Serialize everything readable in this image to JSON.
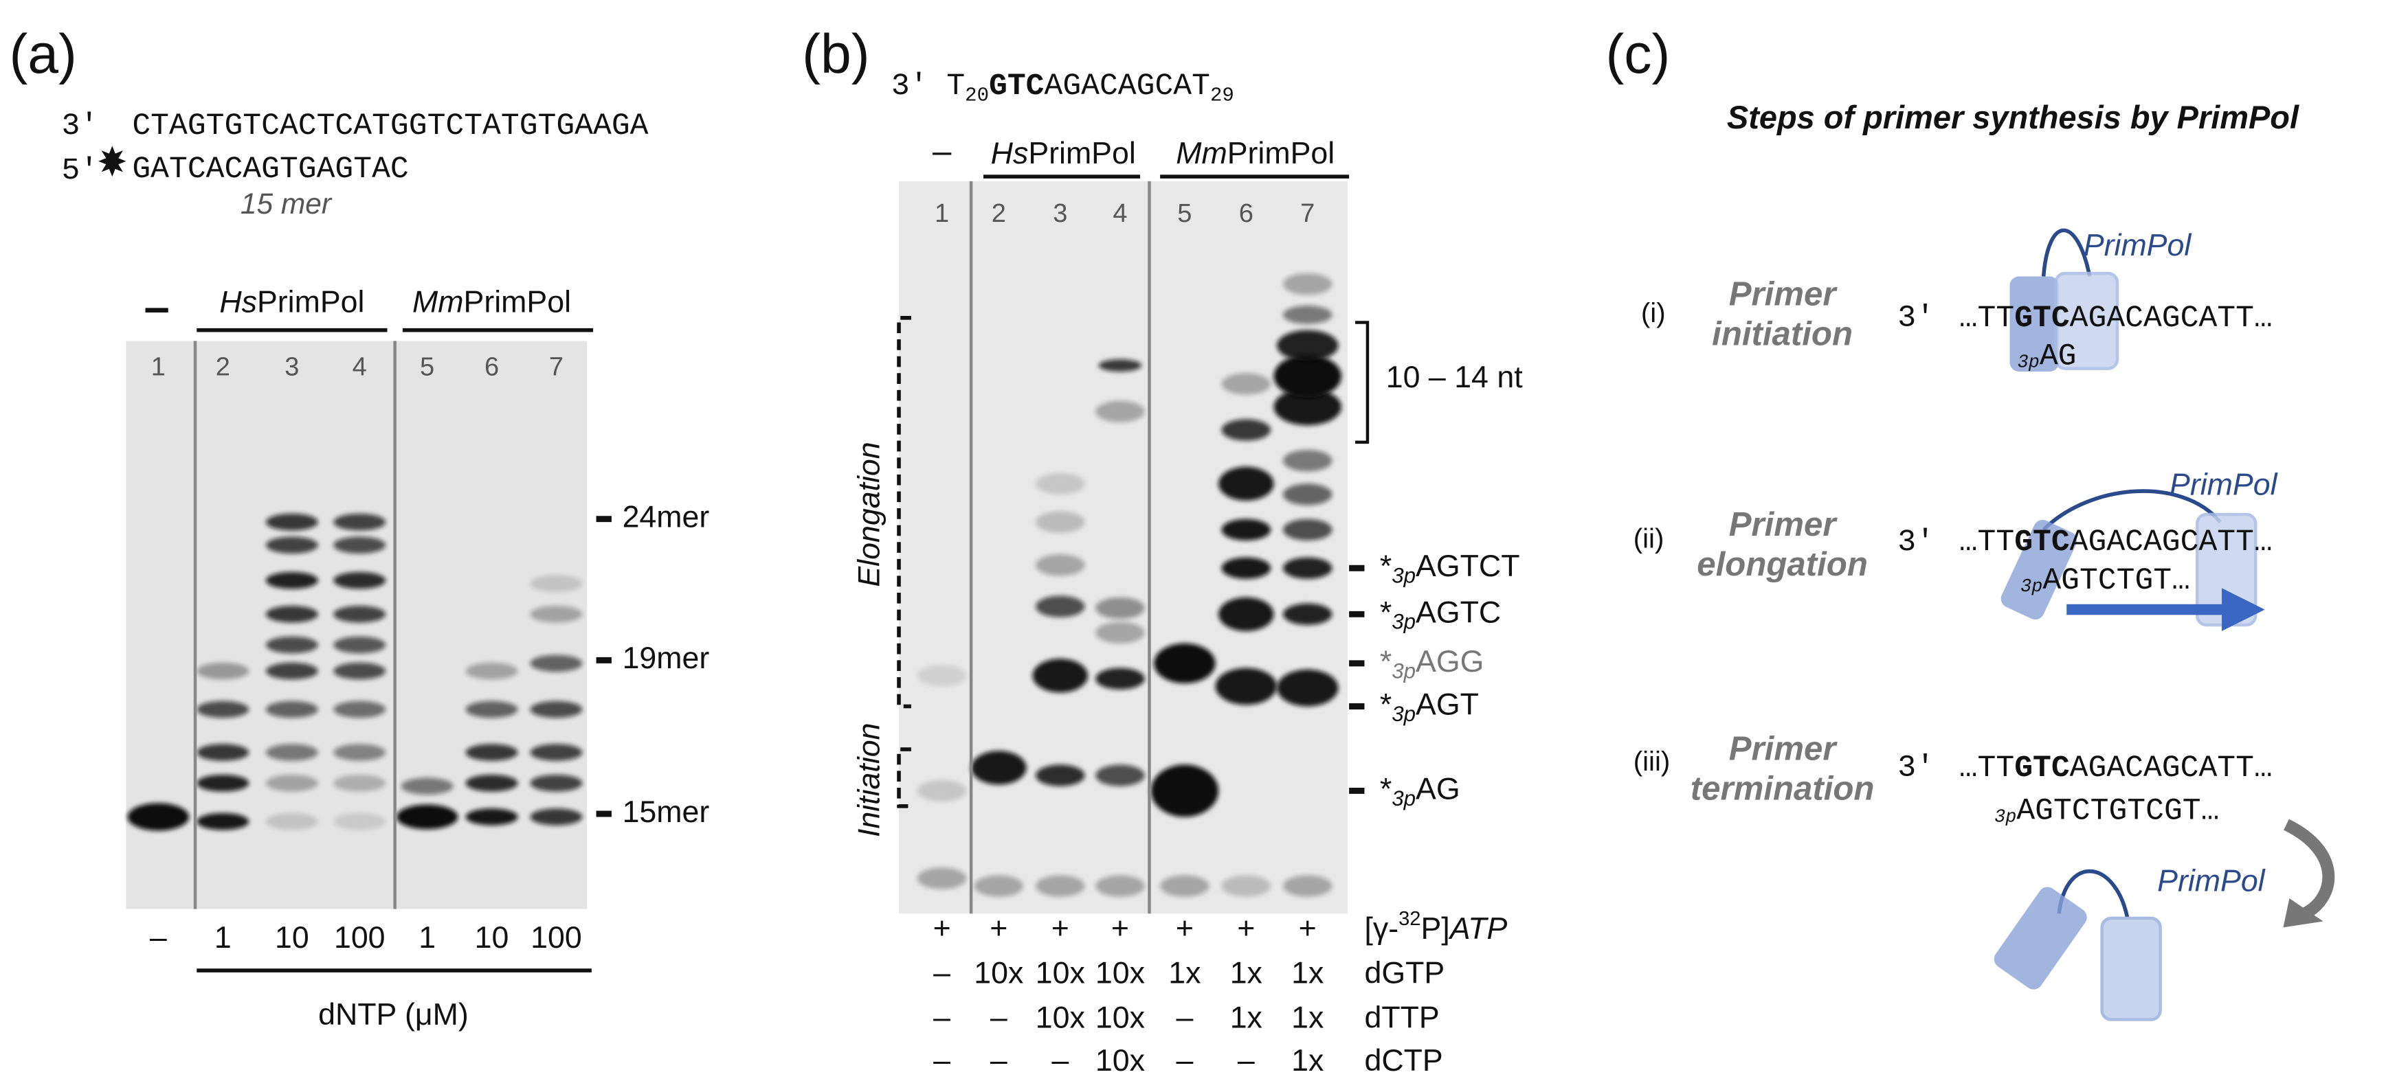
{
  "panel_a": {
    "label": "(a)",
    "template": {
      "end": "3′",
      "sequence": "CTAGTGTCACTCATGGTCTATGTGAAGA"
    },
    "primer": {
      "end": "5′",
      "sequence": "GATCACAGTGAGTAC",
      "length": "15 mer"
    },
    "gel": {
      "control": "–",
      "hs": {
        "species": "Hs",
        "enzyme": "PrimPol"
      },
      "mm": {
        "species": "Mm",
        "enzyme": "PrimPol"
      },
      "lane_numbers": [
        "1",
        "2",
        "3",
        "4",
        "5",
        "6",
        "7"
      ],
      "size_markers": [
        "24mer",
        "19mer",
        "15mer"
      ],
      "concentrations": [
        "–",
        "1",
        "10",
        "100",
        "1",
        "10",
        "100"
      ],
      "concentration_label": "dNTP (μM)"
    }
  },
  "panel_b": {
    "label": "(b)",
    "template": {
      "end": "3′",
      "base": "T",
      "start_index": "20",
      "bold": "GTC",
      "rest": "AGACAGCAT",
      "end_index": "29"
    },
    "gel": {
      "control": "–",
      "hs": {
        "species": "Hs",
        "enzyme": "PrimPol"
      },
      "mm": {
        "species": "Mm",
        "enzyme": "PrimPol"
      },
      "lane_numbers": [
        "1",
        "2",
        "3",
        "4",
        "5",
        "6",
        "7"
      ],
      "stages": [
        "Elongation",
        "Initiation"
      ],
      "range_label": "10 – 14 nt",
      "products": [
        {
          "star": "*",
          "sub": "3p",
          "seq": "AGTCT"
        },
        {
          "star": "*",
          "sub": "3p",
          "seq": "AGTC"
        },
        {
          "star": "*",
          "sub": "3p",
          "seq": "AGG"
        },
        {
          "star": "*",
          "sub": "3p",
          "seq": "AGT"
        },
        {
          "star": "*",
          "sub": "3p",
          "seq": "AG"
        }
      ]
    },
    "conditions": [
      {
        "cells": [
          "+",
          "+",
          "+",
          "+",
          "+",
          "+",
          "+"
        ],
        "label": {
          "open": "[γ-",
          "sup": "32",
          "close": "P]",
          "name": "ATP"
        }
      },
      {
        "cells": [
          "–",
          "10x",
          "10x",
          "10x",
          "1x",
          "1x",
          "1x"
        ],
        "label": "dGTP"
      },
      {
        "cells": [
          "–",
          "–",
          "10x",
          "10x",
          "–",
          "1x",
          "1x"
        ],
        "label": "dTTP"
      },
      {
        "cells": [
          "–",
          "–",
          "–",
          "10x",
          "–",
          "–",
          "1x"
        ],
        "label": "dCTP"
      }
    ]
  },
  "panel_c": {
    "label": "(c)",
    "title": "Steps of primer synthesis by PrimPol",
    "steps": [
      {
        "numeral": "(i)",
        "name": [
          "Primer",
          "initiation"
        ],
        "end": "3′",
        "template": [
          "…TT",
          "GTC",
          "AGACAGCATT…"
        ],
        "product_sub": "3p",
        "product": "AG",
        "enzyme": "PrimPol"
      },
      {
        "numeral": "(ii)",
        "name": [
          "Primer",
          "elongation"
        ],
        "end": "3′",
        "template": [
          "…TT",
          "GTC",
          "AGACAGCATT…"
        ],
        "product_sub": "3p",
        "product": "AGTCTGT…",
        "enzyme": "PrimPol"
      },
      {
        "numeral": "(iii)",
        "name": [
          "Primer",
          "termination"
        ],
        "end": "3′",
        "template": [
          "…TT",
          "GTC",
          "AGACAGCATT…"
        ],
        "product_sub": "3p",
        "product": "AGTCTGTCGT…",
        "enzyme": "PrimPol"
      }
    ]
  }
}
